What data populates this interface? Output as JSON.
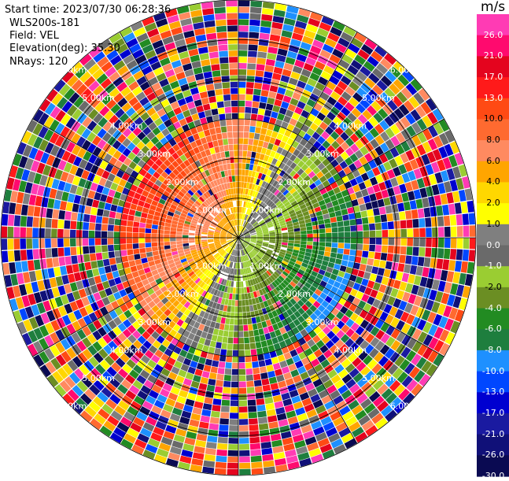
{
  "header": {
    "start_time": "Start time: 2023/07/30 06:28:36",
    "instrument": "WLS200s-181",
    "field": "Field: VEL",
    "elevation": "Elevation(deg): 35.30",
    "nrays": "NRays: 120"
  },
  "chart_data": {
    "type": "heatmap",
    "projection": "ppi-polar",
    "field": "VEL",
    "n_rays": 120,
    "max_range_km": 6.0,
    "range_unit": "km",
    "range_rings_km": [
      1.0,
      2.0,
      3.0,
      4.0,
      5.0,
      6.0
    ],
    "range_ring_labels": [
      "1.00km",
      "2.00km",
      "3.00km",
      "4.00km",
      "5.00km",
      "6.00km"
    ],
    "spoke_azimuths_deg": [
      0,
      30,
      60,
      90,
      120,
      150,
      180,
      210,
      240,
      270,
      300,
      330
    ],
    "grid": true,
    "colorbar": {
      "unit": "m/s",
      "placement": "right",
      "tick_labels": [
        "26.0",
        "21.0",
        "17.0",
        "13.0",
        "10.0",
        "8.0",
        "6.0",
        "4.0",
        "2.0",
        "1.0",
        "0.0",
        "-1.0",
        "-2.0",
        "-4.0",
        "-6.0",
        "-8.0",
        "-10.0",
        "-13.0",
        "-17.0",
        "-21.0",
        "-26.0",
        "-30.0"
      ],
      "colors_top_to_bottom": [
        "#ff3bb4",
        "#ff0a6e",
        "#e4041e",
        "#ff1a1a",
        "#ff4a14",
        "#ff6a30",
        "#ff8a60",
        "#ffa500",
        "#ffd700",
        "#ffff00",
        "#7f7f7f",
        "#6a6a6a",
        "#9acd32",
        "#6b8e23",
        "#228b22",
        "#1e7e3e",
        "#1e90ff",
        "#0047ff",
        "#0000d0",
        "#1a1aa0",
        "#101078",
        "#0a0a52"
      ]
    }
  }
}
